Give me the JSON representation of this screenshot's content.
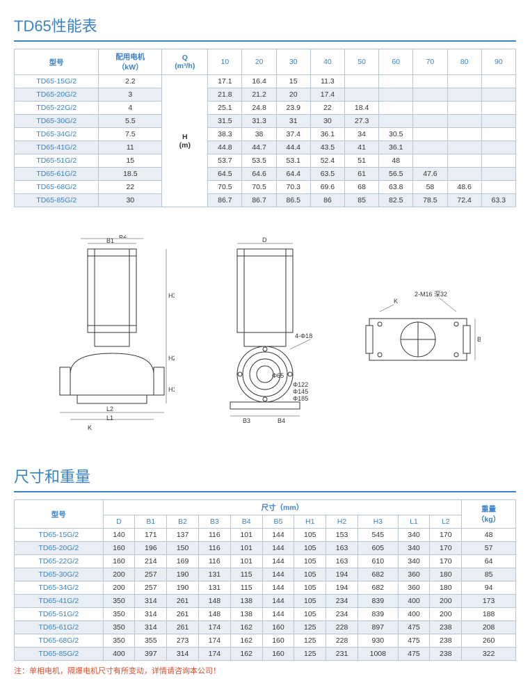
{
  "colors": {
    "accent": "#3b82c4",
    "border": "#b8c5d4",
    "altRow": "#e8eef4",
    "noteColor": "#d94b2b"
  },
  "perf": {
    "title": "TD65性能表",
    "headers": {
      "model": "型号",
      "motor": "配用电机\n（kW）",
      "q": "Q\n(m³/h)",
      "qcols": [
        "10",
        "20",
        "30",
        "40",
        "50",
        "60",
        "70",
        "80",
        "90"
      ],
      "hm": "H\n(m)"
    },
    "rows": [
      {
        "model": "TD65-15G/2",
        "kw": "2.2",
        "v": [
          "17.1",
          "16.4",
          "15",
          "11.3",
          "",
          "",
          "",
          "",
          ""
        ]
      },
      {
        "model": "TD65-20G/2",
        "kw": "3",
        "v": [
          "21.8",
          "21.2",
          "20",
          "17.4",
          "",
          "",
          "",
          "",
          ""
        ]
      },
      {
        "model": "TD65-22G/2",
        "kw": "4",
        "v": [
          "25.1",
          "24.8",
          "23.9",
          "22",
          "18.4",
          "",
          "",
          "",
          ""
        ]
      },
      {
        "model": "TD65-30G/2",
        "kw": "5.5",
        "v": [
          "31.5",
          "31.3",
          "31",
          "30",
          "27.3",
          "",
          "",
          "",
          ""
        ]
      },
      {
        "model": "TD65-34G/2",
        "kw": "7.5",
        "v": [
          "38.3",
          "38",
          "37.4",
          "36.1",
          "34",
          "30.5",
          "",
          "",
          ""
        ]
      },
      {
        "model": "TD65-41G/2",
        "kw": "11",
        "v": [
          "44.8",
          "44.7",
          "44.4",
          "43.5",
          "41",
          "36.1",
          "",
          "",
          ""
        ]
      },
      {
        "model": "TD65-51G/2",
        "kw": "15",
        "v": [
          "53.7",
          "53.5",
          "53.1",
          "52.4",
          "51",
          "48",
          "",
          "",
          ""
        ]
      },
      {
        "model": "TD65-61G/2",
        "kw": "18.5",
        "v": [
          "64.5",
          "64.6",
          "64.4",
          "63.5",
          "61",
          "56.5",
          "47.6",
          "",
          ""
        ]
      },
      {
        "model": "TD65-68G/2",
        "kw": "22",
        "v": [
          "70.5",
          "70.5",
          "70.3",
          "69.6",
          "68",
          "63.8",
          "58",
          "48.6",
          ""
        ]
      },
      {
        "model": "TD65-85G/2",
        "kw": "30",
        "v": [
          "86.7",
          "86.7",
          "86.5",
          "86",
          "85",
          "82.5",
          "78.5",
          "72.4",
          "63.3"
        ]
      }
    ]
  },
  "diagram": {
    "labels_front": [
      "B1",
      "B2",
      "L1",
      "L2",
      "H1",
      "H2",
      "H3",
      "K"
    ],
    "labels_side": [
      "D",
      "B3",
      "B4",
      "4-Φ18",
      "Φ65",
      "Φ122",
      "Φ145",
      "Φ185"
    ],
    "labels_top": [
      "K",
      "2-M16 深32",
      "B5"
    ]
  },
  "dims": {
    "title": "尺寸和重量",
    "headers": {
      "model": "型号",
      "dimGroup": "尺寸（mm）",
      "cols": [
        "D",
        "B1",
        "B2",
        "B3",
        "B4",
        "B5",
        "H1",
        "H2",
        "H3",
        "L1",
        "L2"
      ],
      "weight": "重量\n（kg）"
    },
    "rows": [
      {
        "model": "TD65-15G/2",
        "d": [
          "140",
          "171",
          "137",
          "116",
          "101",
          "144",
          "105",
          "153",
          "545",
          "340",
          "170"
        ],
        "kg": "48"
      },
      {
        "model": "TD65-20G/2",
        "d": [
          "160",
          "196",
          "150",
          "116",
          "101",
          "144",
          "105",
          "163",
          "605",
          "340",
          "170"
        ],
        "kg": "57"
      },
      {
        "model": "TD65-22G/2",
        "d": [
          "160",
          "214",
          "169",
          "116",
          "101",
          "144",
          "105",
          "163",
          "610",
          "340",
          "170"
        ],
        "kg": "64"
      },
      {
        "model": "TD65-30G/2",
        "d": [
          "200",
          "257",
          "190",
          "131",
          "115",
          "144",
          "105",
          "194",
          "682",
          "360",
          "180"
        ],
        "kg": "85"
      },
      {
        "model": "TD65-34G/2",
        "d": [
          "200",
          "257",
          "190",
          "131",
          "115",
          "144",
          "105",
          "194",
          "682",
          "360",
          "180"
        ],
        "kg": "94"
      },
      {
        "model": "TD65-41G/2",
        "d": [
          "350",
          "314",
          "261",
          "148",
          "138",
          "144",
          "105",
          "234",
          "839",
          "400",
          "200"
        ],
        "kg": "173"
      },
      {
        "model": "TD65-51G/2",
        "d": [
          "350",
          "314",
          "261",
          "148",
          "138",
          "144",
          "105",
          "234",
          "839",
          "400",
          "200"
        ],
        "kg": "188"
      },
      {
        "model": "TD65-61G/2",
        "d": [
          "350",
          "314",
          "261",
          "174",
          "162",
          "160",
          "125",
          "228",
          "897",
          "475",
          "238"
        ],
        "kg": "208"
      },
      {
        "model": "TD65-68G/2",
        "d": [
          "350",
          "355",
          "273",
          "174",
          "162",
          "160",
          "125",
          "228",
          "930",
          "475",
          "238"
        ],
        "kg": "260"
      },
      {
        "model": "TD65-85G/2",
        "d": [
          "400",
          "397",
          "314",
          "174",
          "162",
          "160",
          "125",
          "231",
          "1008",
          "475",
          "238"
        ],
        "kg": "322"
      }
    ]
  },
  "note": "注：单相电机，隔爆电机尺寸有所变动，详情请咨询本公司！"
}
